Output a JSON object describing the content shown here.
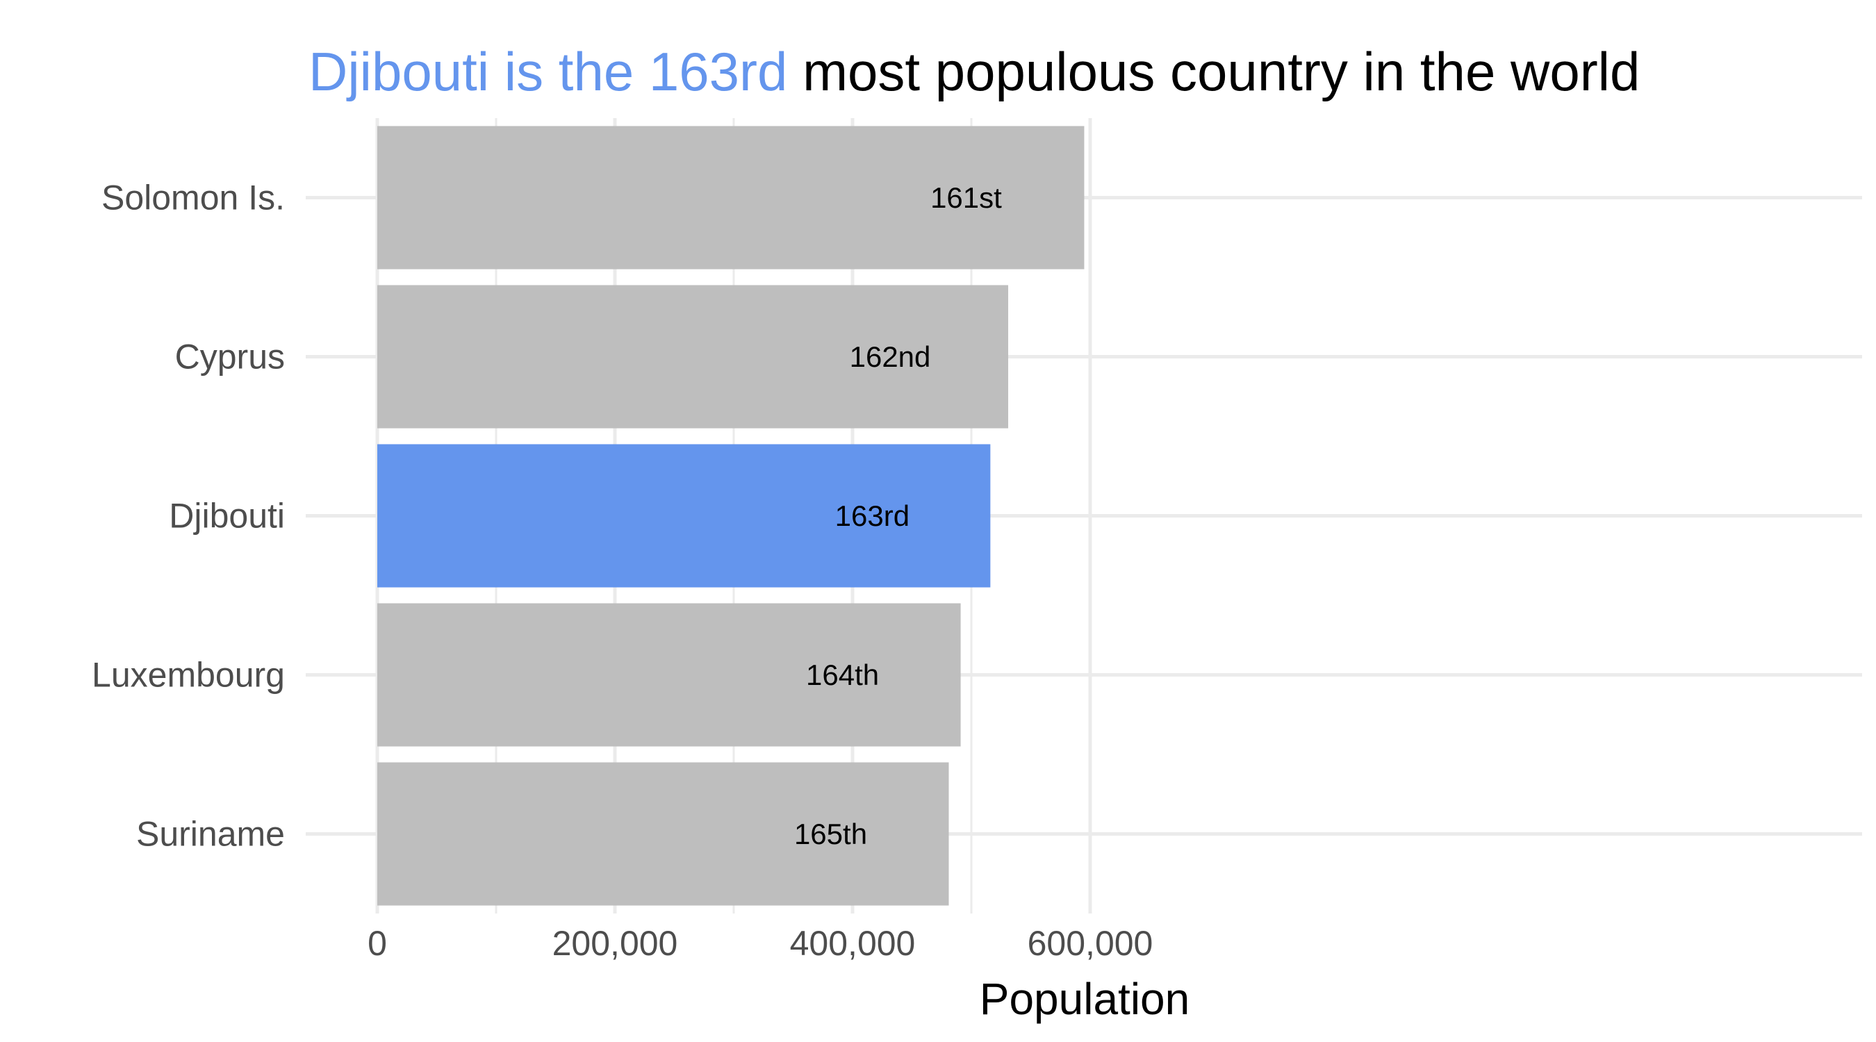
{
  "chart_data": {
    "type": "bar",
    "orientation": "horizontal",
    "title": {
      "highlight_part": "Djibouti is the 163rd",
      "rest": " most populous country in the world"
    },
    "xlabel": "Population",
    "ylabel": "",
    "categories": [
      "Solomon Is.",
      "Cyprus",
      "Djibouti",
      "Luxembourg",
      "Suriname"
    ],
    "values": [
      595000,
      531000,
      516000,
      491000,
      481000
    ],
    "rank_labels": [
      "161st",
      "162nd",
      "163rd",
      "164th",
      "165th"
    ],
    "highlight_category": "Djibouti",
    "xlim": [
      0,
      620000
    ],
    "x_ticks": [
      0,
      200000,
      400000,
      600000
    ],
    "x_tick_labels": [
      "0",
      "200,000",
      "400,000",
      "600,000"
    ],
    "grid": true,
    "legend": "none"
  },
  "colors": {
    "highlight": "#6495ED",
    "default_bar": "#BEBEBE",
    "grid": "#EBEBEB",
    "title_rest": "#000000",
    "tick_text": "#4D4D4D"
  }
}
